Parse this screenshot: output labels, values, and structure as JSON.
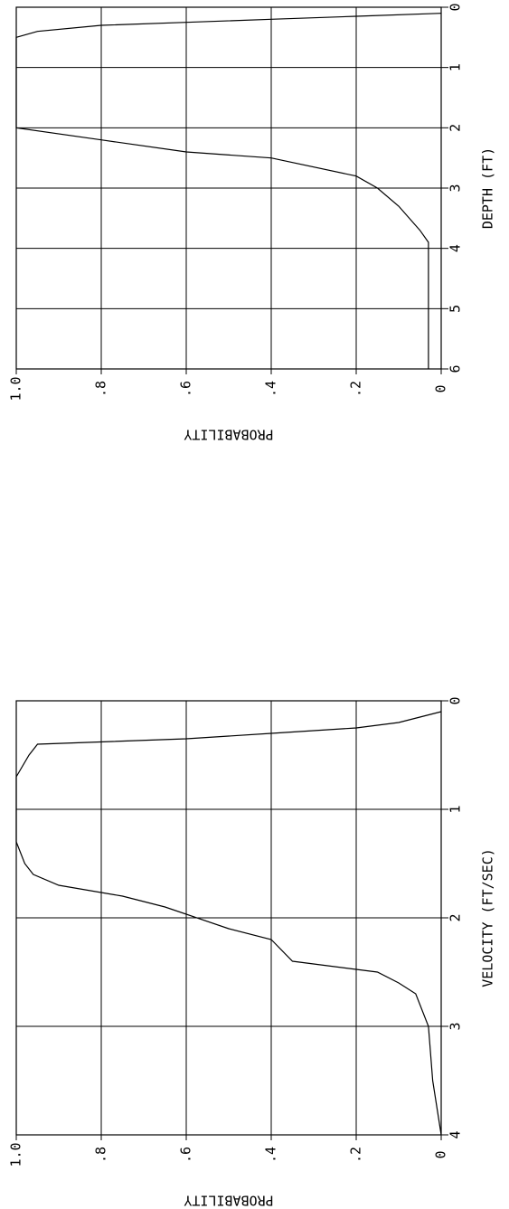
{
  "chart_data": [
    {
      "type": "line",
      "xlabel": "DEPTH (FT)",
      "ylabel": "PROBABILITY",
      "x_ticks": [
        "0",
        "1",
        "2",
        "3",
        "4",
        "5",
        "6"
      ],
      "y_ticks": [
        "0",
        ".2",
        ".4",
        ".6",
        ".8",
        "1.0"
      ],
      "xlim": [
        0,
        6
      ],
      "ylim": [
        0,
        1
      ],
      "grid": true,
      "series": [
        {
          "x": [
            0.1,
            0.15,
            0.2,
            0.25,
            0.3,
            0.4,
            0.5,
            2.0,
            2.2,
            2.4,
            2.5,
            2.8,
            3.0,
            3.3,
            3.7,
            3.9,
            4.0,
            6.0
          ],
          "y": [
            0.0,
            0.2,
            0.4,
            0.6,
            0.8,
            0.95,
            1.0,
            1.0,
            0.8,
            0.6,
            0.4,
            0.2,
            0.15,
            0.1,
            0.05,
            0.03,
            0.03,
            0.03
          ]
        }
      ]
    },
    {
      "type": "line",
      "xlabel": "VELOCITY (FT/SEC)",
      "ylabel": "PROBABILITY",
      "x_ticks": [
        "0",
        "1",
        "2",
        "3",
        "4"
      ],
      "y_ticks": [
        "0",
        ".2",
        ".4",
        ".6",
        ".8",
        "1.0"
      ],
      "xlim": [
        0,
        4
      ],
      "ylim": [
        0,
        1
      ],
      "grid": true,
      "series": [
        {
          "x": [
            0.1,
            0.15,
            0.2,
            0.25,
            0.3,
            0.35,
            0.4,
            0.5,
            0.7,
            1.3,
            1.5,
            1.6,
            1.7,
            1.8,
            1.9,
            2.1,
            2.2,
            2.4,
            2.5,
            2.6,
            2.7,
            3.0,
            3.5,
            4.0
          ],
          "y": [
            0.0,
            0.05,
            0.1,
            0.2,
            0.4,
            0.6,
            0.95,
            0.97,
            1.0,
            1.0,
            0.98,
            0.96,
            0.9,
            0.75,
            0.65,
            0.5,
            0.4,
            0.35,
            0.15,
            0.1,
            0.06,
            0.03,
            0.02,
            0.0
          ]
        }
      ]
    }
  ]
}
